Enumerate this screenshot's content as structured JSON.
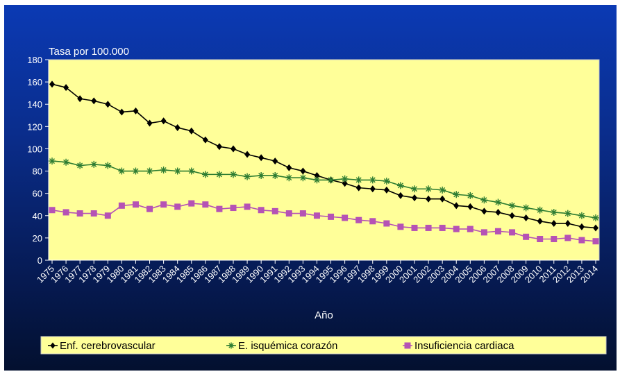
{
  "chart_data": {
    "type": "line",
    "ylabel": "Tasa por 100.000",
    "xlabel": "Año",
    "ylim": [
      0,
      180
    ],
    "yticks": [
      0,
      20,
      40,
      60,
      80,
      100,
      120,
      140,
      160,
      180
    ],
    "grid": false,
    "legend_position": "bottom",
    "highlight_category": "1996",
    "highlight_color": "#e8251c",
    "plot_background": "#ffff99",
    "categories": [
      "1975",
      "1976",
      "1977",
      "1978",
      "1979",
      "1980",
      "1981",
      "1982",
      "1983",
      "1984",
      "1985",
      "1986",
      "1987",
      "1988",
      "1989",
      "1990",
      "1991",
      "1992",
      "1993",
      "1994",
      "1995",
      "1996",
      "1997",
      "1998",
      "1999",
      "2000",
      "2001",
      "2002",
      "2003",
      "2004",
      "2005",
      "2006",
      "2007",
      "2008",
      "2009",
      "2010",
      "2011",
      "2012",
      "2013",
      "2014"
    ],
    "series": [
      {
        "name": "Enf. cerebrovascular",
        "color": "#000000",
        "marker": "diamond",
        "values": [
          158,
          155,
          145,
          143,
          140,
          133,
          134,
          123,
          125,
          119,
          116,
          108,
          102,
          100,
          95,
          92,
          89,
          83,
          80,
          76,
          72,
          69,
          65,
          64,
          63,
          58,
          56,
          55,
          55,
          49,
          48,
          44,
          43,
          40,
          38,
          35,
          33,
          33,
          30,
          29
        ]
      },
      {
        "name": "E. isquémica corazón",
        "color": "#2e7d32",
        "marker": "star",
        "values": [
          89,
          88,
          85,
          86,
          85,
          80,
          80,
          80,
          81,
          80,
          80,
          77,
          77,
          77,
          75,
          76,
          76,
          74,
          74,
          72,
          72,
          73,
          72,
          72,
          71,
          67,
          64,
          64,
          63,
          59,
          58,
          54,
          52,
          49,
          47,
          45,
          43,
          42,
          40,
          38
        ]
      },
      {
        "name": "Insuficiencia cardiaca",
        "color": "#b552b5",
        "marker": "square",
        "values": [
          45,
          43,
          42,
          42,
          40,
          49,
          50,
          46,
          50,
          48,
          51,
          50,
          46,
          47,
          48,
          45,
          44,
          42,
          42,
          40,
          39,
          38,
          36,
          35,
          33,
          30,
          29,
          29,
          29,
          28,
          28,
          25,
          26,
          25,
          21,
          19,
          19,
          20,
          18,
          17
        ]
      }
    ]
  }
}
